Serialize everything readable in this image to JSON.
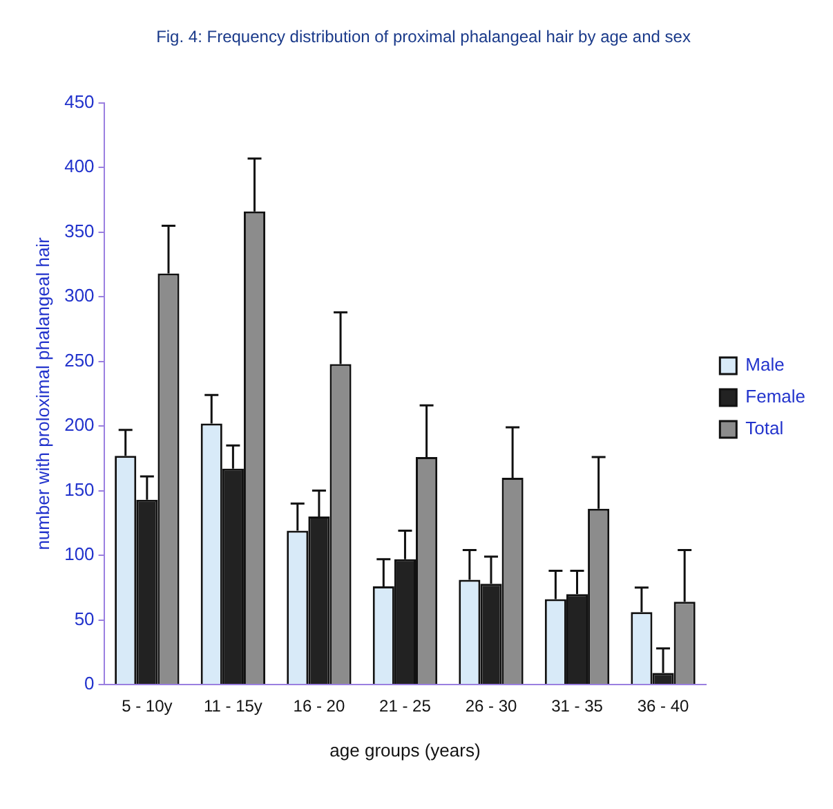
{
  "chart_data": {
    "type": "bar",
    "title": "Fig. 4: Frequency distribution of proximal phalangeal hair by age and sex",
    "xlabel": "age groups (years)",
    "ylabel": "number with proloximal phalangeal hair",
    "categories": [
      "5 - 10y",
      "11 - 15y",
      "16 - 20",
      "21 - 25",
      "26 - 30",
      "31 - 35",
      "36 - 40"
    ],
    "ylim": [
      0,
      450
    ],
    "yticks": [
      0,
      50,
      100,
      150,
      200,
      250,
      300,
      350,
      400,
      450
    ],
    "grid": false,
    "legend": "right",
    "series": [
      {
        "name": "Male",
        "color": "#d8eaf8",
        "values": [
          177,
          202,
          119,
          76,
          81,
          66,
          56
        ],
        "errors": [
          [
            177,
            197
          ],
          [
            202,
            224
          ],
          [
            119,
            140
          ],
          [
            76,
            97
          ],
          [
            81,
            104
          ],
          [
            66,
            88
          ],
          [
            56,
            75
          ]
        ]
      },
      {
        "name": "Female",
        "color": "#222222",
        "values": [
          143,
          167,
          130,
          97,
          78,
          70,
          9
        ],
        "errors": [
          [
            143,
            161
          ],
          [
            167,
            185
          ],
          [
            130,
            150
          ],
          [
            97,
            119
          ],
          [
            78,
            99
          ],
          [
            70,
            88
          ],
          [
            9,
            28
          ]
        ]
      },
      {
        "name": "Total",
        "color": "#8c8c8c",
        "values": [
          318,
          366,
          248,
          176,
          160,
          136,
          64
        ],
        "errors": [
          [
            318,
            355
          ],
          [
            366,
            407
          ],
          [
            248,
            288
          ],
          [
            176,
            216
          ],
          [
            160,
            199
          ],
          [
            136,
            176
          ],
          [
            64,
            104
          ]
        ]
      }
    ]
  }
}
